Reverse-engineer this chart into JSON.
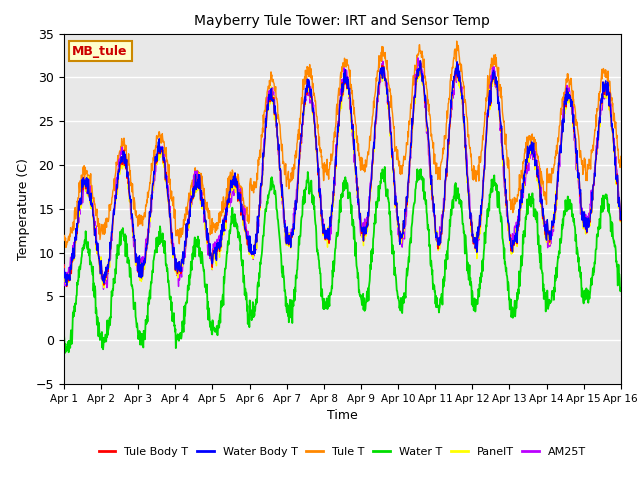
{
  "title": "Mayberry Tule Tower: IRT and Sensor Temp",
  "xlabel": "Time",
  "ylabel": "Temperature (C)",
  "ylim": [
    -5,
    35
  ],
  "xlim": [
    0,
    15
  ],
  "x_ticks": [
    0,
    1,
    2,
    3,
    4,
    5,
    6,
    7,
    8,
    9,
    10,
    11,
    12,
    13,
    14,
    15
  ],
  "x_tick_labels": [
    "Apr 1",
    "Apr 2",
    "Apr 3",
    "Apr 4",
    "Apr 5",
    "Apr 6",
    "Apr 7",
    "Apr 8",
    "Apr 9",
    "Apr 10",
    "Apr 11",
    "Apr 12",
    "Apr 13",
    "Apr 14",
    "Apr 15",
    "Apr 16"
  ],
  "legend_entries": [
    "Tule Body T",
    "Water Body T",
    "Tule T",
    "Water T",
    "PanelT",
    "AM25T"
  ],
  "legend_colors": [
    "#ff0000",
    "#0000ff",
    "#ff8800",
    "#00dd00",
    "#ffff00",
    "#bb00ff"
  ],
  "line_colors": {
    "tule_body": "#ff0000",
    "water_body": "#0000ff",
    "tule": "#ff8800",
    "water": "#00dd00",
    "panel": "#ffff00",
    "am25": "#bb00ff"
  },
  "annotation_text": "MB_tule",
  "annotation_color": "#cc0000",
  "annotation_bg": "#ffffcc",
  "annotation_border": "#cc8800",
  "plot_bg": "#e8e8e8",
  "fig_bg": "#ffffff",
  "grid_color": "#ffffff",
  "yticks": [
    -5,
    0,
    5,
    10,
    15,
    20,
    25,
    30,
    35
  ]
}
